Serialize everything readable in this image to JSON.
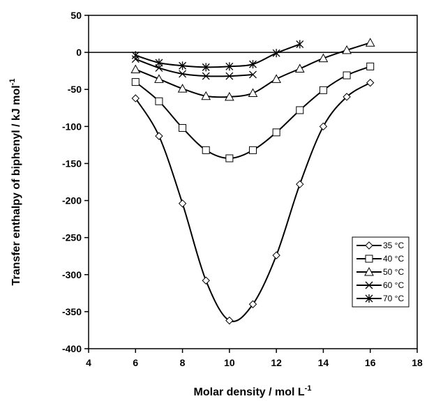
{
  "chart_data": {
    "type": "line",
    "title": "",
    "xlabel": "Molar density / mol L",
    "xlabel_sup": "-1",
    "ylabel": "Transfer enthalpy of biphenyl / kJ mol",
    "ylabel_sup": "-1",
    "xlim": [
      4,
      18
    ],
    "ylim": [
      -400,
      50
    ],
    "xticks": [
      4,
      6,
      8,
      10,
      12,
      14,
      16,
      18
    ],
    "yticks": [
      50,
      0,
      -50,
      -100,
      -150,
      -200,
      -250,
      -300,
      -350,
      -400
    ],
    "grid": false,
    "zero_line": true,
    "legend_position": "bottom-right",
    "series": [
      {
        "name": "35 °C",
        "marker": "diamond",
        "x": [
          6,
          7,
          8,
          9,
          10,
          11,
          12,
          13,
          14,
          15,
          16
        ],
        "y": [
          -62,
          -113,
          -204,
          -308,
          -362,
          -340,
          -274,
          -178,
          -100,
          -60,
          -41
        ]
      },
      {
        "name": "40 °C",
        "marker": "square",
        "x": [
          6,
          7,
          8,
          9,
          10,
          11,
          12,
          13,
          14,
          15,
          16
        ],
        "y": [
          -40,
          -66,
          -102,
          -132,
          -143,
          -132,
          -108,
          -78,
          -51,
          -31,
          -19
        ]
      },
      {
        "name": "50 °C",
        "marker": "triangle",
        "x": [
          6,
          7,
          8,
          9,
          10,
          11,
          12,
          13,
          14,
          15,
          16
        ],
        "y": [
          -23,
          -36,
          -49,
          -59,
          -60,
          -55,
          -36,
          -22,
          -8,
          3,
          13
        ]
      },
      {
        "name": "60 °C",
        "marker": "x",
        "x": [
          6,
          7,
          8,
          9,
          10,
          11
        ],
        "y": [
          -9,
          -21,
          -29,
          -32,
          -32,
          -30
        ]
      },
      {
        "name": "70 °C",
        "marker": "star",
        "x": [
          6,
          7,
          8,
          9,
          10,
          11,
          12,
          13
        ],
        "y": [
          -4,
          -14,
          -18,
          -20,
          -19,
          -16,
          -1,
          11
        ]
      }
    ]
  }
}
